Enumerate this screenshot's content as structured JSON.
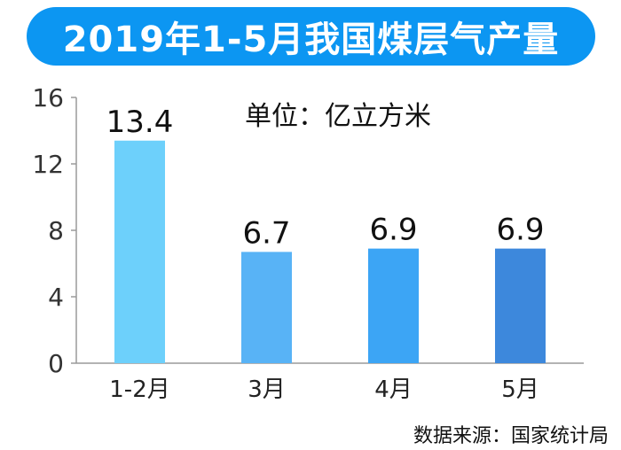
{
  "chart_data": {
    "type": "bar",
    "title": "2019年1-5月我国煤层气产量",
    "unit": "单位：亿立方米",
    "source": "数据来源：国家统计局",
    "categories": [
      "1-2月",
      "3月",
      "4月",
      "5月"
    ],
    "values": [
      13.4,
      6.7,
      6.9,
      6.9
    ],
    "value_labels": [
      "13.4",
      "6.7",
      "6.9",
      "6.9"
    ],
    "ylim": [
      0,
      16
    ],
    "yticks": [
      "0",
      "4",
      "8",
      "12",
      "16"
    ],
    "grid": false,
    "colors": {
      "title_banner": "#0c96f2",
      "bars": [
        "#6dd0fb",
        "#58b3f6",
        "#3ca5f5",
        "#3d88dc"
      ],
      "axis": "#9a9a9a"
    }
  }
}
